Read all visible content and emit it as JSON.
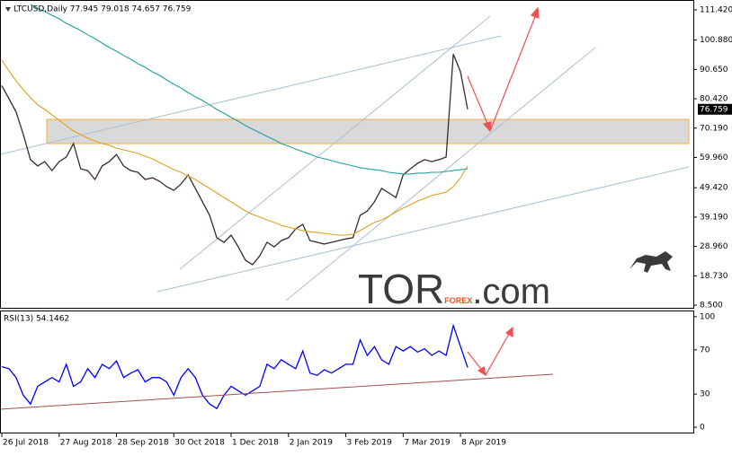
{
  "chart_data": [
    {
      "type": "line",
      "title": "LTCUSD,Daily  77.945 79.018 74.657 76.759",
      "grid": false,
      "categories": [
        "26 Jul 2018",
        null,
        null,
        null,
        null,
        null,
        null,
        null,
        "27 Aug 2018",
        null,
        null,
        null,
        null,
        null,
        null,
        null,
        "28 Sep 2018",
        null,
        null,
        null,
        null,
        null,
        null,
        null,
        "30 Oct 2018",
        null,
        null,
        null,
        null,
        null,
        null,
        null,
        "1 Dec 2018",
        null,
        null,
        null,
        null,
        null,
        null,
        null,
        "2 Jan 2019",
        null,
        null,
        null,
        null,
        null,
        null,
        null,
        "3 Feb 2019",
        null,
        null,
        null,
        null,
        null,
        null,
        null,
        "7 Mar 2019",
        null,
        null,
        null,
        null,
        null,
        null,
        null,
        "8 Apr 2019",
        null
      ],
      "ylim": [
        7.57,
        113.9
      ],
      "yticks": [
        {
          "value": 8.5,
          "label": "8.500"
        },
        {
          "value": 18.73,
          "label": "18.730"
        },
        {
          "value": 28.96,
          "label": "28.960"
        },
        {
          "value": 39.19,
          "label": "39.190"
        },
        {
          "value": 49.42,
          "label": "49.420"
        },
        {
          "value": 59.96,
          "label": "59.960"
        },
        {
          "value": 70.19,
          "label": "70.190"
        },
        {
          "value": 80.42,
          "label": "80.420"
        },
        {
          "value": 90.65,
          "label": "90.650"
        },
        {
          "value": 100.88,
          "label": "100.880"
        },
        {
          "value": 111.42,
          "label": "111.420"
        }
      ],
      "series": [
        {
          "color": "#3a2a2a",
          "values": [
            85,
            80.4,
            75.8,
            68,
            59.2,
            57,
            58.5,
            55.4,
            58.5,
            60.1,
            64.8,
            56,
            55.4,
            52.3,
            57,
            58.5,
            61,
            57,
            55.4,
            54.8,
            52.3,
            52.9,
            51.7,
            49.8,
            48.5,
            50.7,
            53.9,
            49.2,
            44.5,
            39.8,
            32,
            30.4,
            32.9,
            28.8,
            24.1,
            22.6,
            25.7,
            30.4,
            28.8,
            31,
            32,
            35.1,
            36.7,
            31,
            30.4,
            29.8,
            30.4,
            31,
            31.6,
            32,
            39.8,
            41.3,
            44.5,
            49.2,
            47.6,
            46,
            53.9,
            56,
            57.9,
            59.2,
            58.5,
            59.2,
            60.1,
            96,
            89.8,
            76.759
          ]
        },
        {
          "color": "#20a0a0",
          "values": [
            null,
            null,
            null,
            null,
            113.3,
            112,
            110.8,
            109.5,
            108.3,
            106.7,
            105.5,
            104.2,
            102.7,
            101.4,
            99.8,
            98.3,
            97,
            95.5,
            94.2,
            92.6,
            91.4,
            89.8,
            88.6,
            87,
            85.5,
            84.2,
            82.6,
            81.1,
            79.8,
            78.3,
            76.7,
            75.4,
            73.9,
            72.6,
            71.1,
            69.8,
            68.6,
            67.3,
            66.1,
            64.8,
            63.9,
            62.9,
            62,
            61.1,
            60.1,
            59.5,
            58.9,
            58.2,
            57.6,
            57,
            56.4,
            56,
            55.7,
            55.4,
            54.8,
            54.5,
            54.2,
            54.2,
            54.5,
            54.5,
            54.8,
            54.8,
            55.1,
            55.4,
            55.7,
            56
          ]
        },
        {
          "color": "#e0a020",
          "values": [
            93.9,
            90.1,
            86.7,
            83.6,
            80.8,
            78.3,
            76.7,
            74.8,
            72.9,
            71.1,
            69.2,
            67.9,
            66.7,
            65.7,
            64.8,
            64.2,
            63.2,
            62.6,
            62,
            61.4,
            60.4,
            59.5,
            58.2,
            57,
            55.7,
            54.8,
            53.5,
            52.3,
            50.7,
            49.2,
            47.6,
            46,
            44.5,
            42.9,
            41.3,
            40.1,
            39.2,
            38.2,
            37.3,
            36.3,
            35.7,
            35.1,
            34.5,
            34.1,
            33.8,
            33.5,
            33.2,
            32.9,
            32.9,
            33.2,
            34.5,
            36,
            37.3,
            38.2,
            39.5,
            41,
            42.3,
            43.5,
            44.8,
            45.7,
            46.7,
            47.3,
            47.9,
            49.8,
            52.9,
            57
          ]
        }
      ]
    },
    {
      "type": "line",
      "title": "RSI(13) 54.1462",
      "grid": false,
      "ylim": [
        -5.6,
        105.6
      ],
      "yticks": [
        0,
        30,
        70,
        100
      ],
      "series": [
        {
          "color": "#0000ff",
          "values": [
            54.8,
            53,
            45,
            29,
            21,
            37,
            41,
            45,
            41,
            57,
            37,
            41,
            53,
            45,
            57,
            53,
            60,
            45,
            49,
            52,
            41,
            45,
            45,
            41,
            29,
            45,
            53,
            45,
            29,
            21,
            17,
            29,
            37,
            33,
            29,
            33,
            37,
            57,
            53,
            61,
            57,
            53,
            69,
            49,
            47,
            52,
            49,
            53,
            57,
            57,
            79,
            65,
            73,
            61,
            57,
            73,
            69,
            73,
            68,
            71,
            65,
            69,
            65,
            92,
            73,
            54.1462
          ]
        }
      ]
    }
  ],
  "watermark": {
    "part1": "TOR",
    "part2": "FOREX",
    "part3": ".com"
  }
}
